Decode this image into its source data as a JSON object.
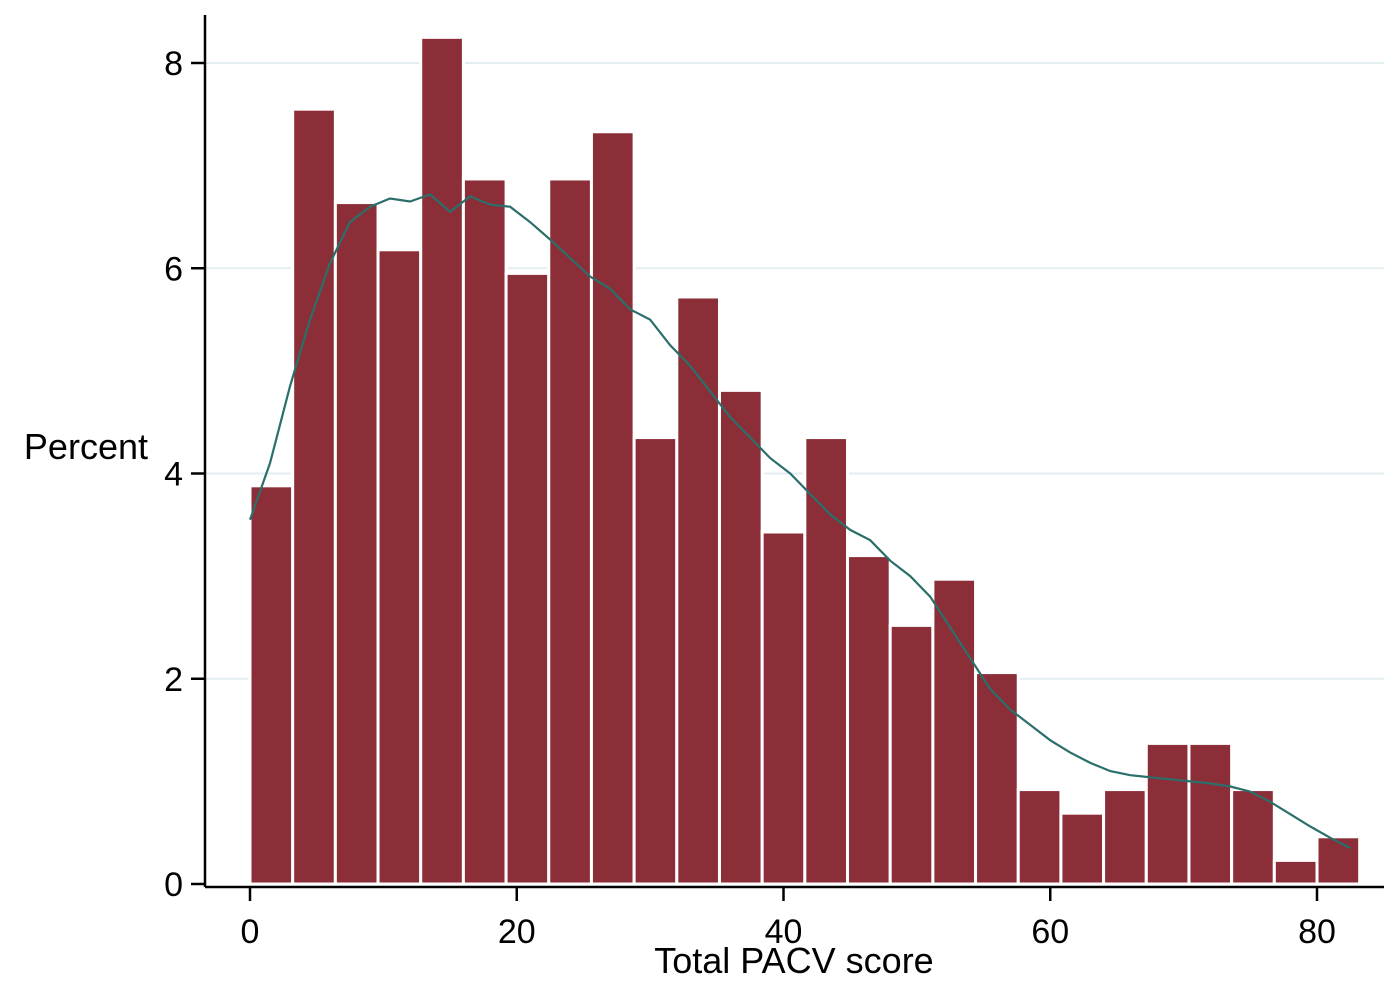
{
  "chart_data": {
    "type": "bar",
    "title": "",
    "xlabel": "Total PACV score",
    "ylabel": "Percent",
    "xlim": [
      -3.5,
      84
    ],
    "ylim": [
      0,
      8.5
    ],
    "xticks": [
      0,
      20,
      40,
      60,
      80
    ],
    "yticks": [
      0,
      2,
      4,
      6,
      8
    ],
    "grid": "horizontal",
    "legend": "none",
    "bin_width": 3.2,
    "bins": [
      {
        "x_start": 0.0,
        "value": 3.88
      },
      {
        "x_start": 3.2,
        "value": 7.55
      },
      {
        "x_start": 6.4,
        "value": 6.64
      },
      {
        "x_start": 9.6,
        "value": 6.18
      },
      {
        "x_start": 12.8,
        "value": 8.25
      },
      {
        "x_start": 16.0,
        "value": 6.87
      },
      {
        "x_start": 19.2,
        "value": 5.95
      },
      {
        "x_start": 22.4,
        "value": 6.87
      },
      {
        "x_start": 25.6,
        "value": 7.33
      },
      {
        "x_start": 28.8,
        "value": 4.35
      },
      {
        "x_start": 32.0,
        "value": 5.72
      },
      {
        "x_start": 35.2,
        "value": 4.81
      },
      {
        "x_start": 38.4,
        "value": 3.43
      },
      {
        "x_start": 41.6,
        "value": 4.35
      },
      {
        "x_start": 44.8,
        "value": 3.2
      },
      {
        "x_start": 48.0,
        "value": 2.52
      },
      {
        "x_start": 51.2,
        "value": 2.97
      },
      {
        "x_start": 54.4,
        "value": 2.06
      },
      {
        "x_start": 57.6,
        "value": 0.92
      },
      {
        "x_start": 60.8,
        "value": 0.69
      },
      {
        "x_start": 64.0,
        "value": 0.92
      },
      {
        "x_start": 67.2,
        "value": 1.37
      },
      {
        "x_start": 70.4,
        "value": 1.37
      },
      {
        "x_start": 73.6,
        "value": 0.92
      },
      {
        "x_start": 76.8,
        "value": 0.23
      },
      {
        "x_start": 80.0,
        "value": 0.46
      }
    ],
    "density_curve": {
      "x": [
        0,
        1.5,
        3,
        4.5,
        6,
        7.5,
        9,
        10.5,
        12,
        13.5,
        15,
        16.5,
        18,
        19.5,
        21,
        22.5,
        24,
        25.5,
        27,
        28.5,
        30,
        31.5,
        33,
        34.5,
        36,
        37.5,
        39,
        40.5,
        42,
        43.5,
        45,
        46.5,
        48,
        49.5,
        51,
        52.5,
        54,
        55.5,
        57,
        58.5,
        60,
        61.5,
        63,
        64.5,
        66,
        67.5,
        69,
        70.5,
        72,
        73.5,
        75,
        76.5,
        78,
        79.5,
        81,
        82.5
      ],
      "y": [
        3.55,
        4.1,
        4.85,
        5.5,
        6.05,
        6.45,
        6.6,
        6.68,
        6.65,
        6.72,
        6.55,
        6.7,
        6.62,
        6.6,
        6.45,
        6.28,
        6.1,
        5.92,
        5.8,
        5.6,
        5.5,
        5.25,
        5.05,
        4.8,
        4.55,
        4.35,
        4.15,
        4.0,
        3.8,
        3.6,
        3.45,
        3.35,
        3.15,
        3.0,
        2.8,
        2.5,
        2.2,
        1.9,
        1.7,
        1.55,
        1.4,
        1.28,
        1.18,
        1.1,
        1.06,
        1.04,
        1.02,
        1.0,
        0.98,
        0.95,
        0.9,
        0.8,
        0.68,
        0.56,
        0.45,
        0.35
      ]
    },
    "colors": {
      "bar_fill": "#8b2e38",
      "bar_edge": "#ffffff",
      "curve": "#2a6f6a",
      "grid": "#e3eef0",
      "axis": "#000000"
    }
  }
}
